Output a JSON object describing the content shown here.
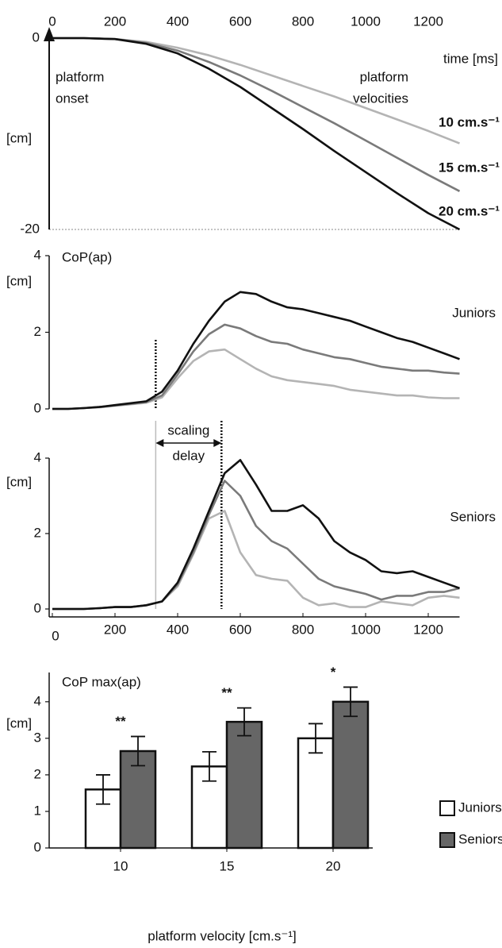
{
  "chart_data": [
    {
      "type": "line",
      "xlabel": "time [ms]",
      "ylabel": "[cm]",
      "onset_label": [
        "platform",
        "onset"
      ],
      "velocities_label": [
        "platform",
        "velocities"
      ],
      "x": [
        0,
        100,
        200,
        300,
        400,
        500,
        600,
        700,
        800,
        900,
        1000,
        1100,
        1200,
        1300
      ],
      "xlim": [
        0,
        1300
      ],
      "xticks": [
        0,
        200,
        400,
        600,
        800,
        1000,
        1200
      ],
      "ylim": [
        -20,
        0
      ],
      "yticks": [
        0,
        -20
      ],
      "series": [
        {
          "name": "10 cm.s⁻¹",
          "color": "#b4b4b4",
          "values": [
            0,
            0,
            -0.1,
            -0.4,
            -1,
            -1.8,
            -2.8,
            -3.9,
            -5,
            -6.1,
            -7.3,
            -8.5,
            -9.7,
            -11
          ]
        },
        {
          "name": "15 cm.s⁻¹",
          "color": "#7a7a7a",
          "values": [
            0,
            0,
            -0.1,
            -0.5,
            -1.3,
            -2.5,
            -3.9,
            -5.5,
            -7.2,
            -8.9,
            -10.7,
            -12.5,
            -14.3,
            -16
          ]
        },
        {
          "name": "20 cm.s⁻¹",
          "color": "#111111",
          "values": [
            0,
            0,
            -0.1,
            -0.6,
            -1.6,
            -3.2,
            -5.1,
            -7.3,
            -9.5,
            -11.8,
            -14,
            -16.2,
            -18.3,
            -20
          ]
        }
      ]
    },
    {
      "type": "line",
      "title": "CoP(ap)",
      "ylabel": "[cm]",
      "group": "Juniors",
      "x": [
        0,
        50,
        100,
        150,
        200,
        250,
        300,
        350,
        400,
        450,
        500,
        550,
        600,
        650,
        700,
        750,
        800,
        850,
        900,
        950,
        1000,
        1050,
        1100,
        1150,
        1200,
        1250,
        1300
      ],
      "xlim": [
        0,
        1300
      ],
      "ylim": [
        0,
        4
      ],
      "yticks": [
        0,
        2,
        4
      ],
      "vlines": [
        330
      ],
      "series": [
        {
          "color": "#b4b4b4",
          "values": [
            0,
            0,
            0.02,
            0.04,
            0.08,
            0.12,
            0.16,
            0.3,
            0.8,
            1.25,
            1.5,
            1.55,
            1.3,
            1.05,
            0.85,
            0.75,
            0.7,
            0.65,
            0.6,
            0.5,
            0.45,
            0.4,
            0.35,
            0.35,
            0.3,
            0.28,
            0.28
          ]
        },
        {
          "color": "#7a7a7a",
          "values": [
            0,
            0,
            0.02,
            0.05,
            0.09,
            0.13,
            0.18,
            0.35,
            0.9,
            1.5,
            1.95,
            2.2,
            2.1,
            1.9,
            1.75,
            1.7,
            1.55,
            1.45,
            1.35,
            1.3,
            1.2,
            1.1,
            1.05,
            1,
            1,
            0.95,
            0.92
          ]
        },
        {
          "color": "#111111",
          "values": [
            0,
            0,
            0.02,
            0.05,
            0.1,
            0.15,
            0.2,
            0.45,
            1,
            1.7,
            2.3,
            2.8,
            3.05,
            3,
            2.8,
            2.65,
            2.6,
            2.5,
            2.4,
            2.3,
            2.15,
            2,
            1.85,
            1.75,
            1.6,
            1.45,
            1.3
          ]
        }
      ]
    },
    {
      "type": "line",
      "ylabel": "[cm]",
      "group": "Seniors",
      "delay_label": [
        "scaling",
        "delay"
      ],
      "x": [
        0,
        50,
        100,
        150,
        200,
        250,
        300,
        350,
        400,
        450,
        500,
        550,
        600,
        650,
        700,
        750,
        800,
        850,
        900,
        950,
        1000,
        1050,
        1100,
        1150,
        1200,
        1250,
        1300
      ],
      "xlim": [
        0,
        1300
      ],
      "xticks": [
        0,
        200,
        400,
        600,
        800,
        1000,
        1200
      ],
      "ylim": [
        0,
        4
      ],
      "yticks": [
        0,
        2,
        4
      ],
      "vlines": [
        330,
        540
      ],
      "series": [
        {
          "color": "#b4b4b4",
          "values": [
            0,
            0,
            0,
            0.02,
            0.05,
            0.05,
            0.1,
            0.2,
            0.6,
            1.45,
            2.4,
            2.6,
            1.5,
            0.9,
            0.8,
            0.75,
            0.3,
            0.1,
            0.15,
            0.05,
            0.05,
            0.2,
            0.15,
            0.1,
            0.3,
            0.35,
            0.3
          ]
        },
        {
          "color": "#7a7a7a",
          "values": [
            0,
            0,
            0,
            0.02,
            0.05,
            0.05,
            0.1,
            0.2,
            0.65,
            1.5,
            2.5,
            3.4,
            3,
            2.2,
            1.8,
            1.6,
            1.2,
            0.8,
            0.6,
            0.5,
            0.4,
            0.25,
            0.35,
            0.35,
            0.45,
            0.45,
            0.55
          ]
        },
        {
          "color": "#111111",
          "values": [
            0,
            0,
            0,
            0.02,
            0.05,
            0.05,
            0.1,
            0.2,
            0.7,
            1.6,
            2.6,
            3.6,
            3.95,
            3.3,
            2.6,
            2.6,
            2.75,
            2.4,
            1.8,
            1.5,
            1.3,
            1,
            0.95,
            1,
            0.85,
            0.7,
            0.55
          ]
        }
      ]
    },
    {
      "type": "bar",
      "title": "CoP max(ap)",
      "ylabel": "[cm]",
      "xlabel": "platform velocity [cm.s⁻¹]",
      "categories": [
        "10",
        "15",
        "20"
      ],
      "ylim": [
        0,
        4.8
      ],
      "yticks": [
        0,
        1,
        2,
        3,
        4
      ],
      "significance": [
        "**",
        "**",
        "*"
      ],
      "series": [
        {
          "name": "Juniors",
          "color": "#ffffff",
          "values": [
            1.6,
            2.23,
            3.0
          ],
          "errors": [
            0.4,
            0.4,
            0.4
          ]
        },
        {
          "name": "Seniors",
          "color": "#666666",
          "values": [
            2.65,
            3.45,
            4.0
          ],
          "errors": [
            0.4,
            0.38,
            0.4
          ]
        }
      ]
    }
  ]
}
